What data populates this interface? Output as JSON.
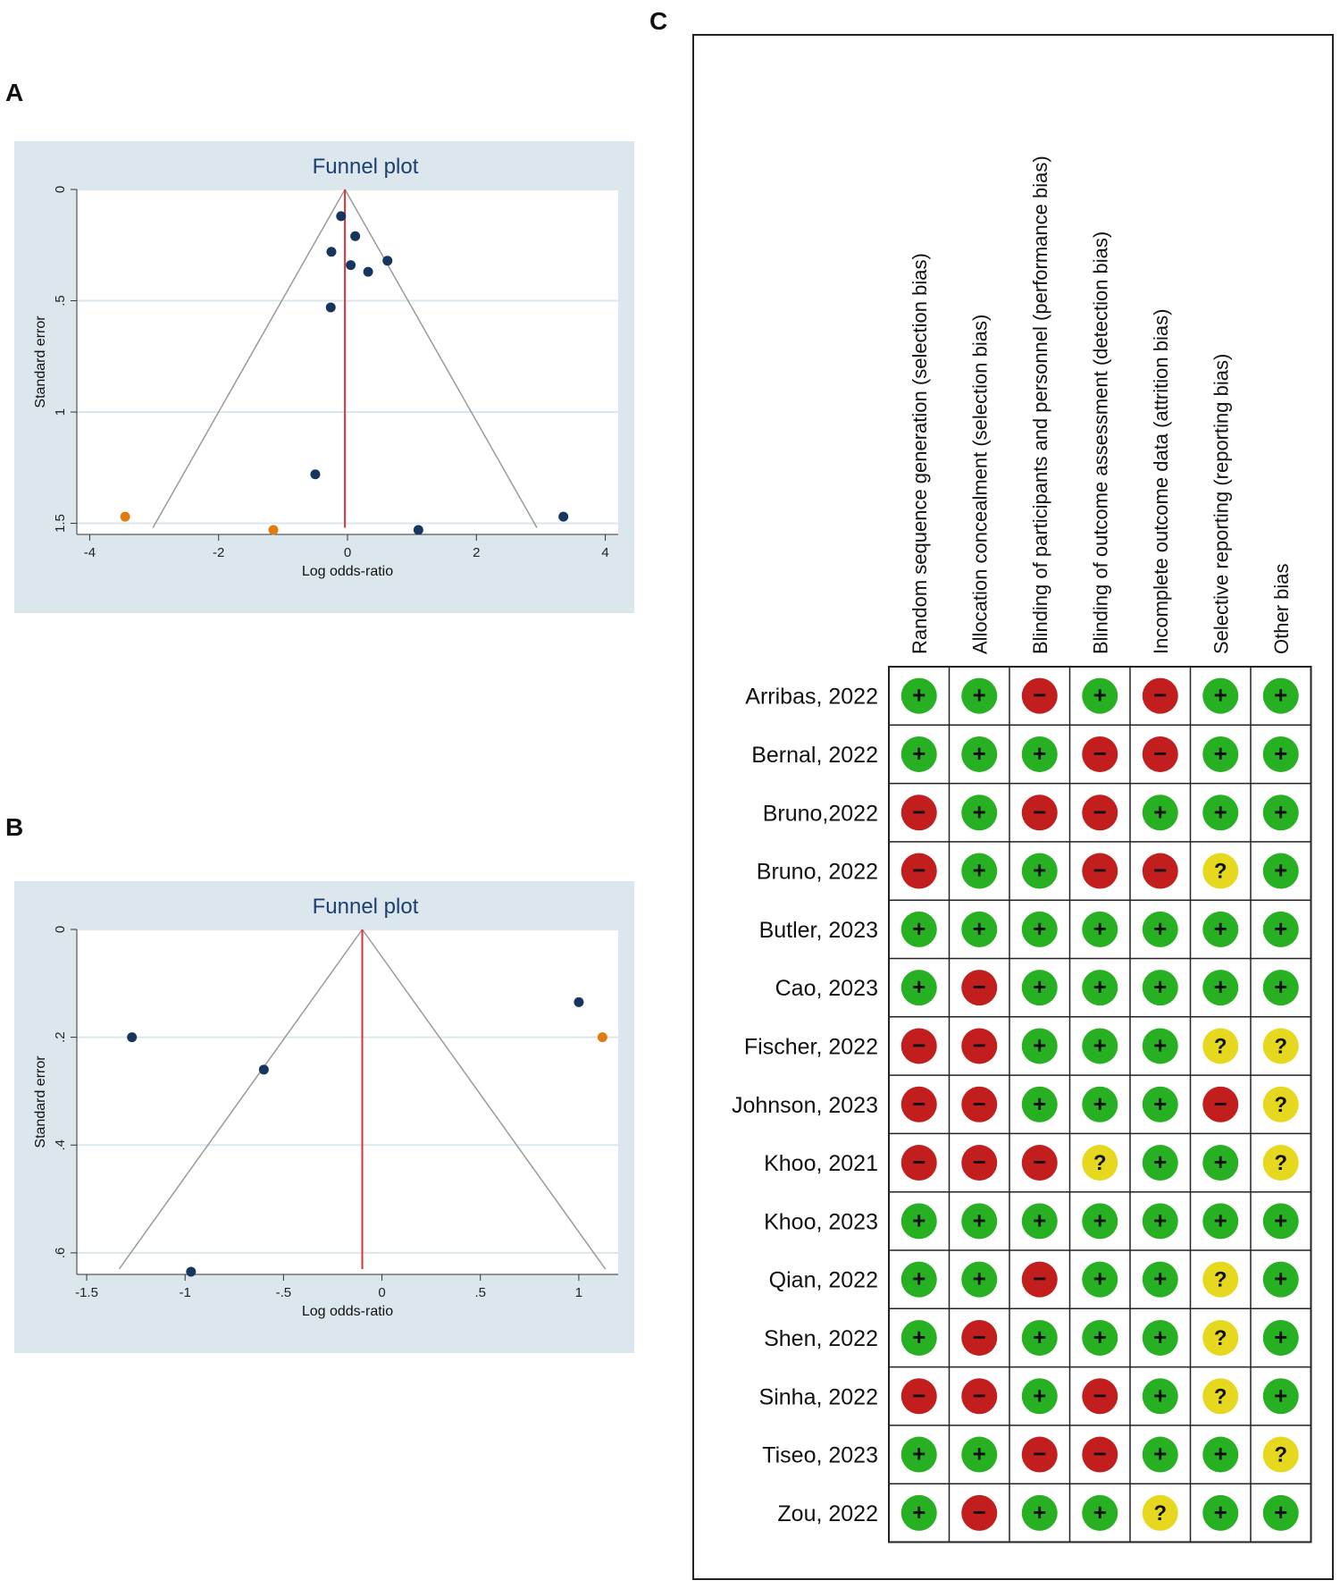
{
  "panels": {
    "a": "A",
    "b": "B",
    "c": "C"
  },
  "colors": {
    "plot_bg": "#dbe7ec",
    "plot_area": "#ffffff",
    "title": "#1c3f72",
    "point": "#16365f",
    "point_imputed": "#e07b10",
    "null_line": "#d4343a",
    "ci_line": "#9a9a9a",
    "low": "#28b023",
    "high": "#c21e1e",
    "unclear": "#e6d81e"
  },
  "chart_data": [
    {
      "type": "scatter",
      "title": "Funnel plot",
      "xlabel": "Log odds-ratio",
      "ylabel": "Standard error",
      "xlim": [
        -4.2,
        4.2
      ],
      "ylim": [
        0,
        1.55
      ],
      "y_reversed": true,
      "xticks": [
        -4,
        -2,
        0,
        2,
        4
      ],
      "xtick_labels": [
        "-4",
        "-2",
        "0",
        "2",
        "4"
      ],
      "yticks": [
        0,
        0.5,
        1,
        1.5
      ],
      "ytick_labels": [
        "0",
        ".5",
        "1",
        "1.5"
      ],
      "pooled_estimate": -0.04,
      "funnel_bottom_se": 1.52,
      "points": [
        {
          "x": -0.1,
          "y": 0.12
        },
        {
          "x": 0.12,
          "y": 0.21
        },
        {
          "x": -0.25,
          "y": 0.28
        },
        {
          "x": 0.05,
          "y": 0.34
        },
        {
          "x": 0.32,
          "y": 0.37
        },
        {
          "x": 0.62,
          "y": 0.32
        },
        {
          "x": -0.26,
          "y": 0.53
        },
        {
          "x": -0.5,
          "y": 1.28
        },
        {
          "x": 1.1,
          "y": 1.53
        },
        {
          "x": 3.35,
          "y": 1.47
        }
      ],
      "imputed_points": [
        {
          "x": -3.45,
          "y": 1.47
        },
        {
          "x": -1.15,
          "y": 1.53
        }
      ]
    },
    {
      "type": "scatter",
      "title": "Funnel plot",
      "xlabel": "Log odds-ratio",
      "ylabel": "Standard error",
      "xlim": [
        -1.55,
        1.2
      ],
      "ylim": [
        0,
        0.64
      ],
      "y_reversed": true,
      "xticks": [
        -1.5,
        -1,
        -0.5,
        0,
        0.5,
        1
      ],
      "xtick_labels": [
        "-1.5",
        "-1",
        "-.5",
        "0",
        ".5",
        "1"
      ],
      "yticks": [
        0,
        0.2,
        0.4,
        0.6
      ],
      "ytick_labels": [
        "0",
        ".2",
        ".4",
        ".6"
      ],
      "pooled_estimate": -0.1,
      "funnel_bottom_se": 0.63,
      "points": [
        {
          "x": -1.27,
          "y": 0.2
        },
        {
          "x": -0.6,
          "y": 0.26
        },
        {
          "x": -0.97,
          "y": 0.635
        },
        {
          "x": 1.0,
          "y": 0.135
        }
      ],
      "imputed_points": [
        {
          "x": 1.12,
          "y": 0.2
        }
      ]
    },
    {
      "type": "table",
      "domains": [
        "Random sequence generation (selection bias)",
        "Allocation concealment (selection bias)",
        "Blinding of participants and personnel (performance bias)",
        "Blinding of outcome assessment (detection bias)",
        "Incomplete outcome data (attrition bias)",
        "Selective reporting (reporting bias)",
        "Other bias"
      ],
      "symbols": {
        "low": "+",
        "high": "−",
        "unclear": "?"
      },
      "studies": [
        {
          "name": "Arribas, 2022",
          "ratings": [
            "low",
            "low",
            "high",
            "low",
            "high",
            "low",
            "low"
          ]
        },
        {
          "name": "Bernal, 2022",
          "ratings": [
            "low",
            "low",
            "low",
            "high",
            "high",
            "low",
            "low"
          ]
        },
        {
          "name": "Bruno,2022",
          "ratings": [
            "high",
            "low",
            "high",
            "high",
            "low",
            "low",
            "low"
          ]
        },
        {
          "name": "Bruno, 2022",
          "ratings": [
            "high",
            "low",
            "low",
            "high",
            "high",
            "unclear",
            "low"
          ]
        },
        {
          "name": "Butler, 2023",
          "ratings": [
            "low",
            "low",
            "low",
            "low",
            "low",
            "low",
            "low"
          ]
        },
        {
          "name": "Cao, 2023",
          "ratings": [
            "low",
            "high",
            "low",
            "low",
            "low",
            "low",
            "low"
          ]
        },
        {
          "name": "Fischer, 2022",
          "ratings": [
            "high",
            "high",
            "low",
            "low",
            "low",
            "unclear",
            "unclear"
          ]
        },
        {
          "name": "Johnson, 2023",
          "ratings": [
            "high",
            "high",
            "low",
            "low",
            "low",
            "high",
            "unclear"
          ]
        },
        {
          "name": "Khoo, 2021",
          "ratings": [
            "high",
            "high",
            "high",
            "unclear",
            "low",
            "low",
            "unclear"
          ]
        },
        {
          "name": "Khoo, 2023",
          "ratings": [
            "low",
            "low",
            "low",
            "low",
            "low",
            "low",
            "low"
          ]
        },
        {
          "name": "Qian, 2022",
          "ratings": [
            "low",
            "low",
            "high",
            "low",
            "low",
            "unclear",
            "low"
          ]
        },
        {
          "name": "Shen, 2022",
          "ratings": [
            "low",
            "high",
            "low",
            "low",
            "low",
            "unclear",
            "low"
          ]
        },
        {
          "name": "Sinha, 2022",
          "ratings": [
            "high",
            "high",
            "low",
            "high",
            "low",
            "unclear",
            "low"
          ]
        },
        {
          "name": "Tiseo, 2023",
          "ratings": [
            "low",
            "low",
            "high",
            "high",
            "low",
            "low",
            "unclear"
          ]
        },
        {
          "name": "Zou, 2022",
          "ratings": [
            "low",
            "high",
            "low",
            "low",
            "unclear",
            "low",
            "low"
          ]
        }
      ]
    }
  ]
}
